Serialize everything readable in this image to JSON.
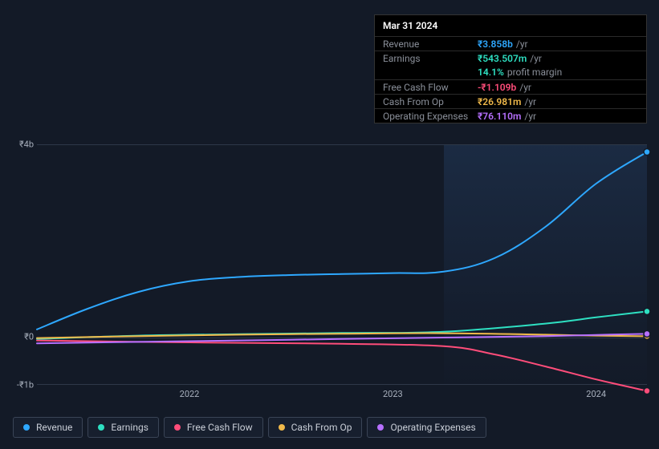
{
  "tooltip": {
    "date": "Mar 31 2024",
    "rows": [
      {
        "label": "Revenue",
        "value": "₹3.858b",
        "suffix": "/yr",
        "color": "#2ea8ff"
      },
      {
        "label": "Earnings",
        "value": "₹543.507m",
        "suffix": "/yr",
        "color": "#2ee0c2"
      },
      {
        "label": "",
        "value": "14.1%",
        "suffix": "profit margin",
        "color": "#2ee0c2",
        "noborder": true
      },
      {
        "label": "Free Cash Flow",
        "value": "-₹1.109b",
        "suffix": "/yr",
        "color": "#ff4d7a"
      },
      {
        "label": "Cash From Op",
        "value": "₹26.981m",
        "suffix": "/yr",
        "color": "#f0b94a"
      },
      {
        "label": "Operating Expenses",
        "value": "₹76.110m",
        "suffix": "/yr",
        "color": "#b770ff"
      }
    ]
  },
  "chart": {
    "type": "line",
    "background_color": "#131a27",
    "grid_color": "#2e3848",
    "yaxis": {
      "min": -1000000000,
      "max": 4000000000,
      "ticks": [
        {
          "v": 4000000000,
          "label": "₹4b"
        },
        {
          "v": 0,
          "label": "₹0"
        },
        {
          "v": -1000000000,
          "label": "-₹1b"
        }
      ]
    },
    "xaxis": {
      "min": 2021.25,
      "max": 2024.25,
      "ticks": [
        {
          "v": 2022,
          "label": "2022"
        },
        {
          "v": 2023,
          "label": "2023"
        },
        {
          "v": 2024,
          "label": "2024"
        }
      ]
    },
    "highlight_from_x": 2023.25,
    "highlight_to_x": 2024.25,
    "series": [
      {
        "key": "revenue",
        "name": "Revenue",
        "color": "#2ea8ff",
        "data": [
          {
            "x": 2021.25,
            "y": 170000000
          },
          {
            "x": 2021.5,
            "y": 600000000
          },
          {
            "x": 2021.75,
            "y": 950000000
          },
          {
            "x": 2022.0,
            "y": 1170000000
          },
          {
            "x": 2022.25,
            "y": 1260000000
          },
          {
            "x": 2022.5,
            "y": 1300000000
          },
          {
            "x": 2022.75,
            "y": 1320000000
          },
          {
            "x": 2023.0,
            "y": 1340000000
          },
          {
            "x": 2023.25,
            "y": 1370000000
          },
          {
            "x": 2023.5,
            "y": 1650000000
          },
          {
            "x": 2023.75,
            "y": 2300000000
          },
          {
            "x": 2024.0,
            "y": 3200000000
          },
          {
            "x": 2024.25,
            "y": 3858000000
          }
        ]
      },
      {
        "key": "earnings",
        "name": "Earnings",
        "color": "#2ee0c2",
        "data": [
          {
            "x": 2021.25,
            "y": -30000000
          },
          {
            "x": 2021.75,
            "y": 40000000
          },
          {
            "x": 2022.25,
            "y": 70000000
          },
          {
            "x": 2022.75,
            "y": 95000000
          },
          {
            "x": 2023.25,
            "y": 120000000
          },
          {
            "x": 2023.75,
            "y": 290000000
          },
          {
            "x": 2024.0,
            "y": 420000000
          },
          {
            "x": 2024.25,
            "y": 543507000
          }
        ]
      },
      {
        "key": "fcf",
        "name": "Free Cash Flow",
        "color": "#ff4d7a",
        "data": [
          {
            "x": 2021.25,
            "y": -60000000
          },
          {
            "x": 2021.75,
            "y": -90000000
          },
          {
            "x": 2022.25,
            "y": -110000000
          },
          {
            "x": 2022.75,
            "y": -130000000
          },
          {
            "x": 2023.25,
            "y": -180000000
          },
          {
            "x": 2023.5,
            "y": -350000000
          },
          {
            "x": 2023.75,
            "y": -600000000
          },
          {
            "x": 2024.0,
            "y": -870000000
          },
          {
            "x": 2024.25,
            "y": -1109000000
          }
        ]
      },
      {
        "key": "cfo",
        "name": "Cash From Op",
        "color": "#f0b94a",
        "data": [
          {
            "x": 2021.25,
            "y": -10000000
          },
          {
            "x": 2021.75,
            "y": 30000000
          },
          {
            "x": 2022.25,
            "y": 60000000
          },
          {
            "x": 2022.75,
            "y": 80000000
          },
          {
            "x": 2023.25,
            "y": 90000000
          },
          {
            "x": 2023.75,
            "y": 60000000
          },
          {
            "x": 2024.0,
            "y": 40000000
          },
          {
            "x": 2024.25,
            "y": 26981000
          }
        ]
      },
      {
        "key": "opex",
        "name": "Operating Expenses",
        "color": "#b770ff",
        "data": [
          {
            "x": 2021.25,
            "y": -120000000
          },
          {
            "x": 2021.75,
            "y": -90000000
          },
          {
            "x": 2022.25,
            "y": -60000000
          },
          {
            "x": 2022.75,
            "y": -30000000
          },
          {
            "x": 2023.25,
            "y": 0
          },
          {
            "x": 2023.75,
            "y": 30000000
          },
          {
            "x": 2024.0,
            "y": 55000000
          },
          {
            "x": 2024.25,
            "y": 76110000
          }
        ]
      }
    ],
    "legend": [
      {
        "key": "revenue",
        "label": "Revenue",
        "color": "#2ea8ff"
      },
      {
        "key": "earnings",
        "label": "Earnings",
        "color": "#2ee0c2"
      },
      {
        "key": "fcf",
        "label": "Free Cash Flow",
        "color": "#ff4d7a"
      },
      {
        "key": "cfo",
        "label": "Cash From Op",
        "color": "#f0b94a"
      },
      {
        "key": "opex",
        "label": "Operating Expenses",
        "color": "#b770ff"
      }
    ]
  }
}
